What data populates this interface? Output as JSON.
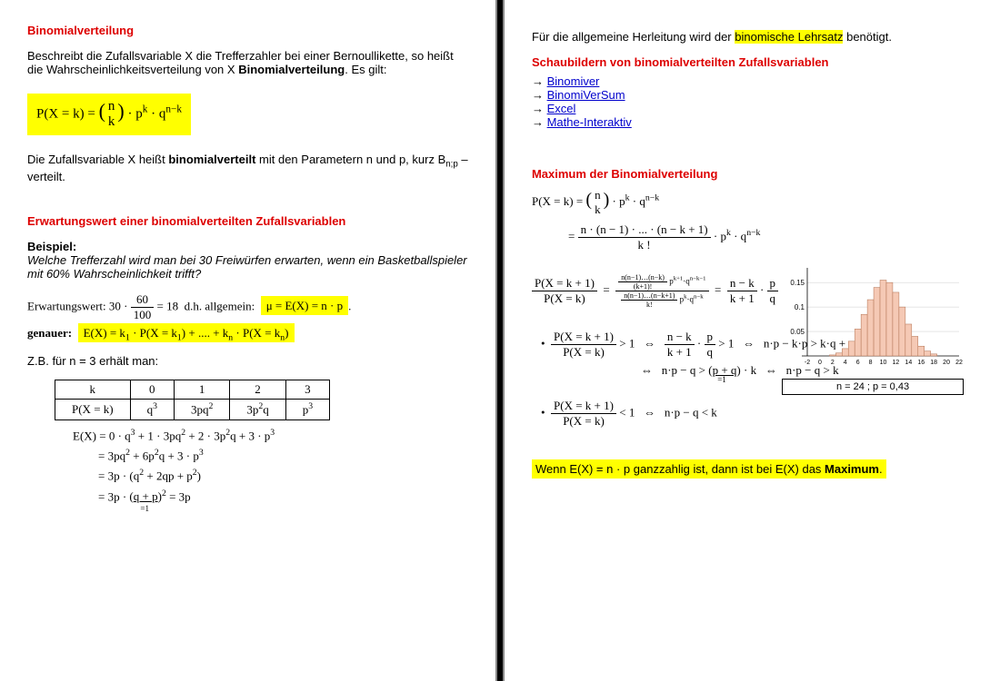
{
  "left": {
    "h1": "Binomialverteilung",
    "intro1": "Beschreibt die Zufallsvariable  X  die Trefferzahler bei einer Bernoullikette, so heißt die Wahrscheinlichkeitsverteilung von X ",
    "intro1_bold": "Binomialverteilung",
    "intro1_end": ". Es gilt:",
    "formula1": "P(X = k) = (n über k) · pᵏ · qⁿ⁻ᵏ",
    "sent1a": "Die Zufallsvariable X heißt ",
    "sent1b": "binomialverteilt",
    "sent1c": " mit den Parametern n und p, kurz B",
    "sent1d": " – verteilt.",
    "h2": "Erwartungswert einer binomialverteilten Zufallsvariablen",
    "beispiel": "Beispiel:",
    "italic": "Welche Trefferzahl wird man bei 30 Freiwürfen erwarten, wenn ein Basketballspieler mit 60% Wahrscheinlichkeit trifft?",
    "erw_label": "Erwartungswert: ",
    "erw_body": "30 · 60/100 = 18  d.h. allgemein:  ",
    "erw_formula": "μ = E(X) = n · p",
    "genauer": "genauer:",
    "genauer_formula": "E(X) = k₁ · P(X = k₁) + .... + kₙ · P(X = kₙ)",
    "zb": "Z.B. für  n = 3  erhält man:",
    "table": {
      "header": [
        "k",
        "0",
        "1",
        "2",
        "3"
      ],
      "row": [
        "P(X = k)",
        "q³",
        "3pq²",
        "3p²q",
        "p³"
      ]
    },
    "deriv1": "E(X) = 0 · q³ + 1 · 3pq² + 2 · 3p²q + 3 · p³",
    "deriv2": "= 3pq² + 6p²q + 3 · p³",
    "deriv3": "= 3p · (q² + 2qp + p²)",
    "deriv4": "= 3p · (q + p)² = 3p",
    "deriv_sub": "=1"
  },
  "right": {
    "top1a": "Für die allgemeine Herleitung wird der ",
    "top1b": "binomische Lehrsatz",
    "top1c": " benötigt.",
    "h3": "Schaubildern von binomialverteilten Zufallsvariablen",
    "links": [
      "Binomiver",
      "BinomiVerSum",
      "Excel",
      "Mathe-Interaktiv"
    ],
    "h4": "Maximum der Binomialverteilung",
    "f1": "P(X = k) = (n über k) · pᵏ · qⁿ⁻ᵏ",
    "f2": "= n·(n−1)·...·(n−k+1) / k!  · pᵏ · qⁿ⁻ᵏ",
    "ratio_label": "P(X = k + 1) / P(X = k)",
    "ratio_mid": "=  (…) / (…)  =",
    "ratio_rhs": "(n − k)/(k + 1) · p/q",
    "bul1": "P(X = k+1)/P(X = k) > 1   ⇔   (n−k)/(k+1) · p/q > 1   ⇔   n·p − k·p > k·q + q",
    "bul1b": "⇔   n·p − q > (p + q)·k   ⇔   n·p − q > k",
    "bul1_sub": "=1",
    "bul2": "P(X = k+1)/P(X = k) < 1   ⇔   n·p − q < k",
    "bottom1a": "Wenn  ",
    "bottom1b": "E(X) = n · p",
    "bottom1c": "  ganzzahlig ist, dann ist bei E(X) das ",
    "bottom1d": "Maximum",
    "bottom1e": ".",
    "chart": {
      "n": 24,
      "p": 0.43,
      "caption": "n = 24  ;   p = 0,43",
      "yticks": [
        0.05,
        0.1,
        0.15
      ],
      "xrange": [
        -2,
        22
      ],
      "bars": [
        {
          "x": 2,
          "h": 0.002
        },
        {
          "x": 3,
          "h": 0.006
        },
        {
          "x": 4,
          "h": 0.015
        },
        {
          "x": 5,
          "h": 0.03
        },
        {
          "x": 6,
          "h": 0.055
        },
        {
          "x": 7,
          "h": 0.085
        },
        {
          "x": 8,
          "h": 0.115
        },
        {
          "x": 9,
          "h": 0.14
        },
        {
          "x": 10,
          "h": 0.155
        },
        {
          "x": 11,
          "h": 0.15
        },
        {
          "x": 12,
          "h": 0.13
        },
        {
          "x": 13,
          "h": 0.1
        },
        {
          "x": 14,
          "h": 0.065
        },
        {
          "x": 15,
          "h": 0.04
        },
        {
          "x": 16,
          "h": 0.02
        },
        {
          "x": 17,
          "h": 0.01
        },
        {
          "x": 18,
          "h": 0.004
        }
      ],
      "bar_color": "#f5c9b5",
      "grid_color": "#cccccc"
    }
  }
}
